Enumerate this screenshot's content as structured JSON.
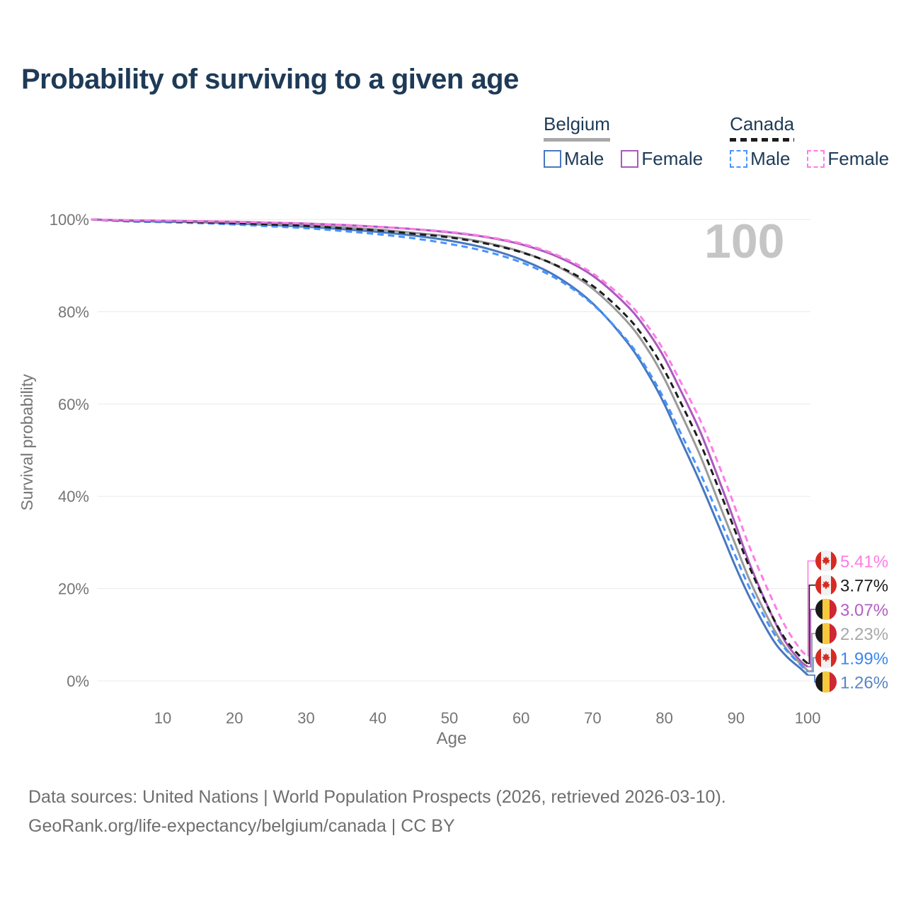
{
  "title": "Probability of surviving to a given age",
  "legend": {
    "groups": [
      {
        "title": "Belgium",
        "style": "solid",
        "rule_color": "#a8a8a8",
        "items": [
          {
            "label": "Male",
            "color": "#4678bf"
          },
          {
            "label": "Female",
            "color": "#a85abc"
          }
        ]
      },
      {
        "title": "Canada",
        "style": "dashed",
        "rule_color": "#1c1c1c",
        "items": [
          {
            "label": "Male",
            "color": "#4893ff"
          },
          {
            "label": "Female",
            "color": "#ff7ce6"
          }
        ]
      }
    ]
  },
  "chart_data": {
    "type": "line",
    "title": "Probability of surviving to a given age",
    "xlabel": "Age",
    "ylabel": "Survival probability",
    "xlim": [
      0,
      100
    ],
    "ylim": [
      0,
      100
    ],
    "x_ticks": [
      10,
      20,
      30,
      40,
      50,
      60,
      70,
      80,
      90,
      100
    ],
    "y_ticks": [
      0,
      20,
      40,
      60,
      80,
      100
    ],
    "y_tick_suffix": "%",
    "grid": "horizontal",
    "legend_position": "top-right",
    "watermark": "100",
    "series": [
      {
        "name": "Belgium Male",
        "id": "belgium-male",
        "country": "belgium",
        "sex": "male",
        "style": "solid",
        "color": "#4678bf",
        "label_color": "#5b84c4",
        "end_value": 1.26,
        "end_label": "1.26%",
        "points": [
          [
            0,
            100
          ],
          [
            5,
            99.7
          ],
          [
            10,
            99.5
          ],
          [
            15,
            99.4
          ],
          [
            20,
            99.1
          ],
          [
            25,
            98.8
          ],
          [
            30,
            98.4
          ],
          [
            35,
            97.9
          ],
          [
            40,
            97.3
          ],
          [
            45,
            96.5
          ],
          [
            50,
            95.4
          ],
          [
            55,
            93.8
          ],
          [
            60,
            91.3
          ],
          [
            65,
            87.6
          ],
          [
            70,
            81.8
          ],
          [
            75,
            73.0
          ],
          [
            78,
            65.8
          ],
          [
            80,
            60.0
          ],
          [
            82,
            53.2
          ],
          [
            85,
            43.0
          ],
          [
            88,
            32.0
          ],
          [
            90,
            24.5
          ],
          [
            92,
            17.8
          ],
          [
            95,
            9.3
          ],
          [
            97,
            5.4
          ],
          [
            99,
            2.7
          ],
          [
            100,
            1.26
          ]
        ]
      },
      {
        "name": "Belgium",
        "id": "belgium-total",
        "country": "belgium",
        "sex": "both",
        "style": "solid",
        "color": "#9a9a9a",
        "label_color": "#a8a8a8",
        "end_value": 2.23,
        "end_label": "2.23%",
        "points": [
          [
            0,
            100
          ],
          [
            5,
            99.7
          ],
          [
            10,
            99.6
          ],
          [
            15,
            99.5
          ],
          [
            20,
            99.3
          ],
          [
            25,
            99.0
          ],
          [
            30,
            98.7
          ],
          [
            35,
            98.3
          ],
          [
            40,
            97.8
          ],
          [
            45,
            97.1
          ],
          [
            50,
            96.3
          ],
          [
            55,
            95.0
          ],
          [
            60,
            93.0
          ],
          [
            65,
            89.9
          ],
          [
            70,
            85.0
          ],
          [
            75,
            77.5
          ],
          [
            78,
            71.0
          ],
          [
            80,
            65.5
          ],
          [
            82,
            59.0
          ],
          [
            85,
            48.8
          ],
          [
            88,
            37.0
          ],
          [
            90,
            29.2
          ],
          [
            92,
            21.5
          ],
          [
            95,
            12.0
          ],
          [
            97,
            7.0
          ],
          [
            99,
            3.7
          ],
          [
            100,
            2.23
          ]
        ]
      },
      {
        "name": "Belgium Female",
        "id": "belgium-female",
        "country": "belgium",
        "sex": "female",
        "style": "solid",
        "color": "#a85abc",
        "label_color": "#b35ec2",
        "end_value": 3.07,
        "end_label": "3.07%",
        "points": [
          [
            0,
            100
          ],
          [
            5,
            99.8
          ],
          [
            10,
            99.7
          ],
          [
            15,
            99.6
          ],
          [
            20,
            99.5
          ],
          [
            25,
            99.3
          ],
          [
            30,
            99.1
          ],
          [
            35,
            98.8
          ],
          [
            40,
            98.4
          ],
          [
            45,
            97.9
          ],
          [
            50,
            97.2
          ],
          [
            55,
            96.2
          ],
          [
            60,
            94.6
          ],
          [
            65,
            92.0
          ],
          [
            70,
            87.8
          ],
          [
            75,
            81.0
          ],
          [
            78,
            75.0
          ],
          [
            80,
            70.0
          ],
          [
            82,
            63.8
          ],
          [
            85,
            54.0
          ],
          [
            88,
            42.0
          ],
          [
            90,
            33.6
          ],
          [
            92,
            25.0
          ],
          [
            95,
            14.2
          ],
          [
            97,
            8.2
          ],
          [
            99,
            4.3
          ],
          [
            100,
            3.07
          ]
        ]
      },
      {
        "name": "Canada Male",
        "id": "canada-male",
        "country": "canada",
        "sex": "male",
        "style": "dashed",
        "color": "#4893ff",
        "label_color": "#3b86f0",
        "end_value": 1.99,
        "end_label": "1.99%",
        "points": [
          [
            0,
            100
          ],
          [
            5,
            99.6
          ],
          [
            10,
            99.4
          ],
          [
            15,
            99.2
          ],
          [
            20,
            98.9
          ],
          [
            25,
            98.5
          ],
          [
            30,
            98.1
          ],
          [
            35,
            97.5
          ],
          [
            40,
            96.8
          ],
          [
            45,
            95.9
          ],
          [
            50,
            94.7
          ],
          [
            55,
            93.1
          ],
          [
            60,
            90.7
          ],
          [
            65,
            87.1
          ],
          [
            70,
            81.6
          ],
          [
            75,
            73.4
          ],
          [
            78,
            66.5
          ],
          [
            80,
            61.0
          ],
          [
            82,
            54.6
          ],
          [
            85,
            45.0
          ],
          [
            88,
            34.2
          ],
          [
            90,
            26.8
          ],
          [
            92,
            19.8
          ],
          [
            95,
            11.0
          ],
          [
            97,
            6.7
          ],
          [
            99,
            3.5
          ],
          [
            100,
            1.99
          ]
        ]
      },
      {
        "name": "Canada",
        "id": "canada-total",
        "country": "canada",
        "sex": "both",
        "style": "dashed",
        "color": "#1c1c1c",
        "label_color": "#1c1c1c",
        "end_value": 3.77,
        "end_label": "3.77%",
        "points": [
          [
            0,
            100
          ],
          [
            5,
            99.7
          ],
          [
            10,
            99.6
          ],
          [
            15,
            99.4
          ],
          [
            20,
            99.2
          ],
          [
            25,
            98.9
          ],
          [
            30,
            98.6
          ],
          [
            35,
            98.1
          ],
          [
            40,
            97.6
          ],
          [
            45,
            96.9
          ],
          [
            50,
            96.1
          ],
          [
            55,
            94.8
          ],
          [
            60,
            92.9
          ],
          [
            65,
            90.0
          ],
          [
            70,
            85.6
          ],
          [
            75,
            78.6
          ],
          [
            78,
            72.5
          ],
          [
            80,
            67.3
          ],
          [
            82,
            61.2
          ],
          [
            85,
            51.5
          ],
          [
            88,
            40.0
          ],
          [
            90,
            32.0
          ],
          [
            92,
            24.2
          ],
          [
            95,
            14.2
          ],
          [
            97,
            8.8
          ],
          [
            99,
            5.2
          ],
          [
            100,
            3.77
          ]
        ]
      },
      {
        "name": "Canada Female",
        "id": "canada-female",
        "country": "canada",
        "sex": "female",
        "style": "dashed",
        "color": "#ff7ce6",
        "label_color": "#ff7ce6",
        "end_value": 5.41,
        "end_label": "5.41%",
        "points": [
          [
            0,
            100
          ],
          [
            5,
            99.8
          ],
          [
            10,
            99.7
          ],
          [
            15,
            99.6
          ],
          [
            20,
            99.5
          ],
          [
            25,
            99.3
          ],
          [
            30,
            99.1
          ],
          [
            35,
            98.8
          ],
          [
            40,
            98.4
          ],
          [
            45,
            97.9
          ],
          [
            50,
            97.3
          ],
          [
            55,
            96.3
          ],
          [
            60,
            94.8
          ],
          [
            65,
            92.3
          ],
          [
            70,
            88.3
          ],
          [
            75,
            81.9
          ],
          [
            78,
            76.2
          ],
          [
            80,
            71.4
          ],
          [
            82,
            65.6
          ],
          [
            85,
            56.5
          ],
          [
            88,
            45.2
          ],
          [
            90,
            37.0
          ],
          [
            92,
            28.6
          ],
          [
            95,
            17.8
          ],
          [
            97,
            11.5
          ],
          [
            99,
            6.8
          ],
          [
            100,
            5.41
          ]
        ]
      }
    ]
  },
  "flags": {
    "belgium": {
      "black": "#1a1a1a",
      "yellow": "#f6c83c",
      "red": "#cf2734"
    },
    "canada": {
      "white": "#f2f2f2",
      "red": "#d52b23"
    }
  },
  "footer": {
    "line1": "Data sources: United Nations | World Population Prospects (2026, retrieved 2026-03-10).",
    "line2": "GeoRank.org/life-expectancy/belgium/canada | CC BY"
  }
}
